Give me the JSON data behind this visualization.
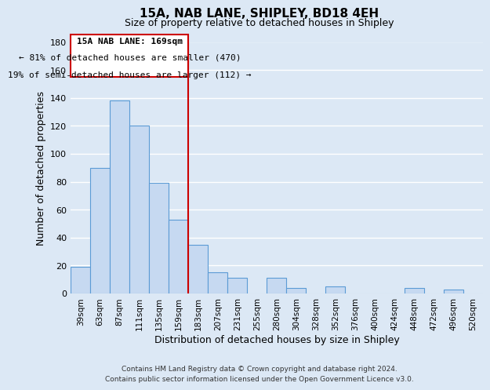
{
  "title": "15A, NAB LANE, SHIPLEY, BD18 4EH",
  "subtitle": "Size of property relative to detached houses in Shipley",
  "xlabel": "Distribution of detached houses by size in Shipley",
  "ylabel": "Number of detached properties",
  "bar_labels": [
    "39sqm",
    "63sqm",
    "87sqm",
    "111sqm",
    "135sqm",
    "159sqm",
    "183sqm",
    "207sqm",
    "231sqm",
    "255sqm",
    "280sqm",
    "304sqm",
    "328sqm",
    "352sqm",
    "376sqm",
    "400sqm",
    "424sqm",
    "448sqm",
    "472sqm",
    "496sqm",
    "520sqm"
  ],
  "bar_values": [
    19,
    90,
    138,
    120,
    79,
    53,
    35,
    15,
    11,
    0,
    11,
    4,
    0,
    5,
    0,
    0,
    0,
    4,
    0,
    3,
    0
  ],
  "bar_color": "#c6d9f1",
  "bar_edge_color": "#5b9bd5",
  "ylim": [
    0,
    180
  ],
  "yticks": [
    0,
    20,
    40,
    60,
    80,
    100,
    120,
    140,
    160,
    180
  ],
  "property_line_x": 5.5,
  "property_line_color": "#cc0000",
  "annotation_title": "15A NAB LANE: 169sqm",
  "annotation_line1": "← 81% of detached houses are smaller (470)",
  "annotation_line2": "19% of semi-detached houses are larger (112) →",
  "footer1": "Contains HM Land Registry data © Crown copyright and database right 2024.",
  "footer2": "Contains public sector information licensed under the Open Government Licence v3.0.",
  "background_color": "#dce8f5",
  "plot_background_color": "#dce8f5"
}
